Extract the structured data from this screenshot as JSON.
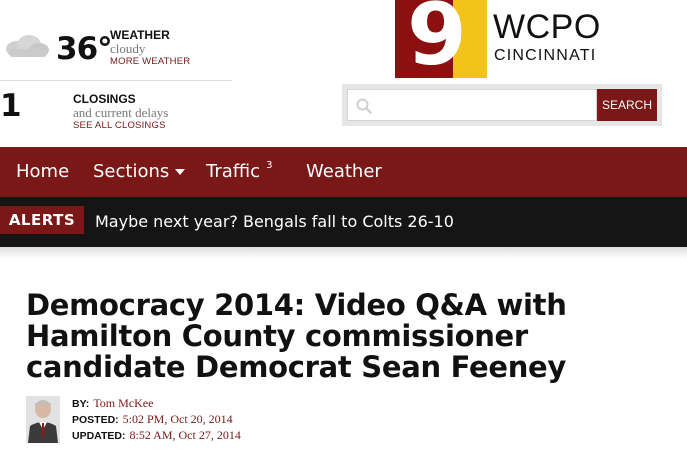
{
  "weather": {
    "temperature": "36°",
    "title": "WEATHER",
    "condition": "cloudy",
    "link": "MORE WEATHER",
    "icon": "cloud-icon"
  },
  "closings": {
    "count": "1",
    "title": "CLOSINGS",
    "subtitle": "and current delays",
    "link": "SEE ALL CLOSINGS"
  },
  "logo": {
    "numeral": "9",
    "name": "WCPO",
    "city": "CINCINNATI"
  },
  "search": {
    "value": "",
    "placeholder": "",
    "button": "SEARCH",
    "icon": "search-icon"
  },
  "nav": {
    "items": [
      {
        "label": "Home"
      },
      {
        "label": "Sections"
      },
      {
        "label": "Traffic",
        "badge": "3"
      },
      {
        "label": "Weather"
      }
    ]
  },
  "alerts": {
    "label": "ALERTS",
    "text": "Maybe next year? Bengals fall to Colts 26-10"
  },
  "article": {
    "headline": "Democracy 2014: Video Q&A with Hamilton County commissioner candidate Democrat Sean Feeney",
    "byline": {
      "label": "BY:",
      "author": "Tom McKee"
    },
    "posted": {
      "label": "POSTED:",
      "value": "5:02 PM, Oct 20, 2014"
    },
    "updated": {
      "label": "UPDATED:",
      "value": "8:52 AM, Oct 27, 2014"
    }
  },
  "colors": {
    "brand": "#7a1717",
    "alerts_bg": "#151515",
    "logo_yellow": "#f2c318",
    "logo_red": "#8c1010"
  }
}
